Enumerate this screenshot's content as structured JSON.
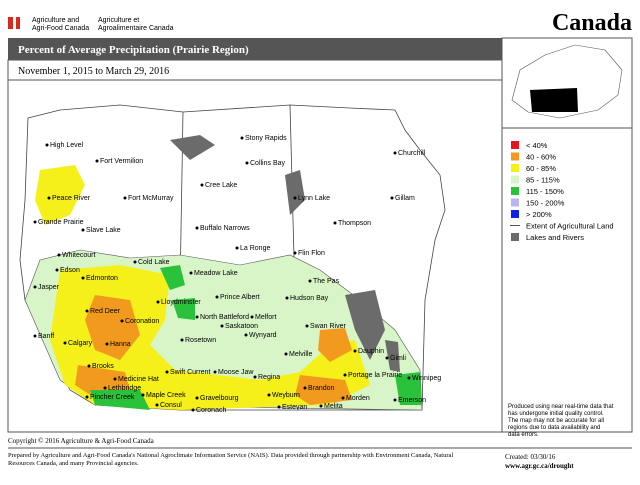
{
  "header": {
    "dept_en": [
      "Agriculture and",
      "Agri-Food Canada"
    ],
    "dept_fr": [
      "Agriculture et",
      "Agroalimentaire Canada"
    ],
    "wordmark": "Canada"
  },
  "title": "Percent of Average Precipitation (Prairie Region)",
  "period": "November 1, 2015 to March 29, 2016",
  "legend": [
    {
      "label": "< 40%",
      "color": "#e8141b"
    },
    {
      "label": "40 - 60%",
      "color": "#f29a1d"
    },
    {
      "label": "60 - 85%",
      "color": "#f5f01a"
    },
    {
      "label": "85 - 115%",
      "color": "#d8f5c8"
    },
    {
      "label": "115 - 150%",
      "color": "#29c23a"
    },
    {
      "label": "150 - 200%",
      "color": "#b7b4f0"
    },
    {
      "label": "> 200%",
      "color": "#1020e8"
    },
    {
      "label": "Extent of Agricultural Land",
      "color": "#555555"
    },
    {
      "label": "Lakes and Rivers",
      "color": "#6b6b6b"
    }
  ],
  "cities": [
    "High Level",
    "Fort Vermilion",
    "Stony Rapids",
    "Collins Bay",
    "Churchill",
    "Peace River",
    "Fort McMurray",
    "Cree Lake",
    "Lynn Lake",
    "Gillam",
    "Grande Prairie",
    "Slave Lake",
    "Buffalo Narrows",
    "Thompson",
    "La Ronge",
    "Whitecourt",
    "Cold Lake",
    "Flin Flon",
    "Edson",
    "Meadow Lake",
    "Edmonton",
    "The Pas",
    "Jasper",
    "Lloydminster",
    "Prince Albert",
    "Hudson Bay",
    "Red Deer",
    "North Battleford",
    "Melfort",
    "Coronation",
    "Saskatoon",
    "Swan River",
    "Banff",
    "Calgary",
    "Hanna",
    "Rosetown",
    "Wynyard",
    "Dauphin",
    "Gimli",
    "Melville",
    "Brooks",
    "Medicine Hat",
    "Swift Current",
    "Moose Jaw",
    "Regina",
    "Portage la Prairie",
    "Winnipeg",
    "Lethbridge",
    "Brandon",
    "Pincher Creek",
    "Maple Creek",
    "Gravelbourg",
    "Weyburn",
    "Morden",
    "Emerson",
    "Consul",
    "Estevan",
    "Melita",
    "Coronach"
  ],
  "disclaimer": "Produced using near real-time data that has undergone initial quality control. The map may not be accurate for all regions due to data availability and data errors.",
  "footer": {
    "copyright": "Copyright © 2016 Agriculture & Agri-Food Canada",
    "prepared": "Prepared by Agriculture and Agri-Food Canada's National Agroclimate Information Service (NAIS).  Data provided through partnership with Environment Canada, Natural Resources Canada, and many Provincial agencies.",
    "created": "Created: 03/30/16",
    "url": "www.agr.gc.ca/drought"
  }
}
